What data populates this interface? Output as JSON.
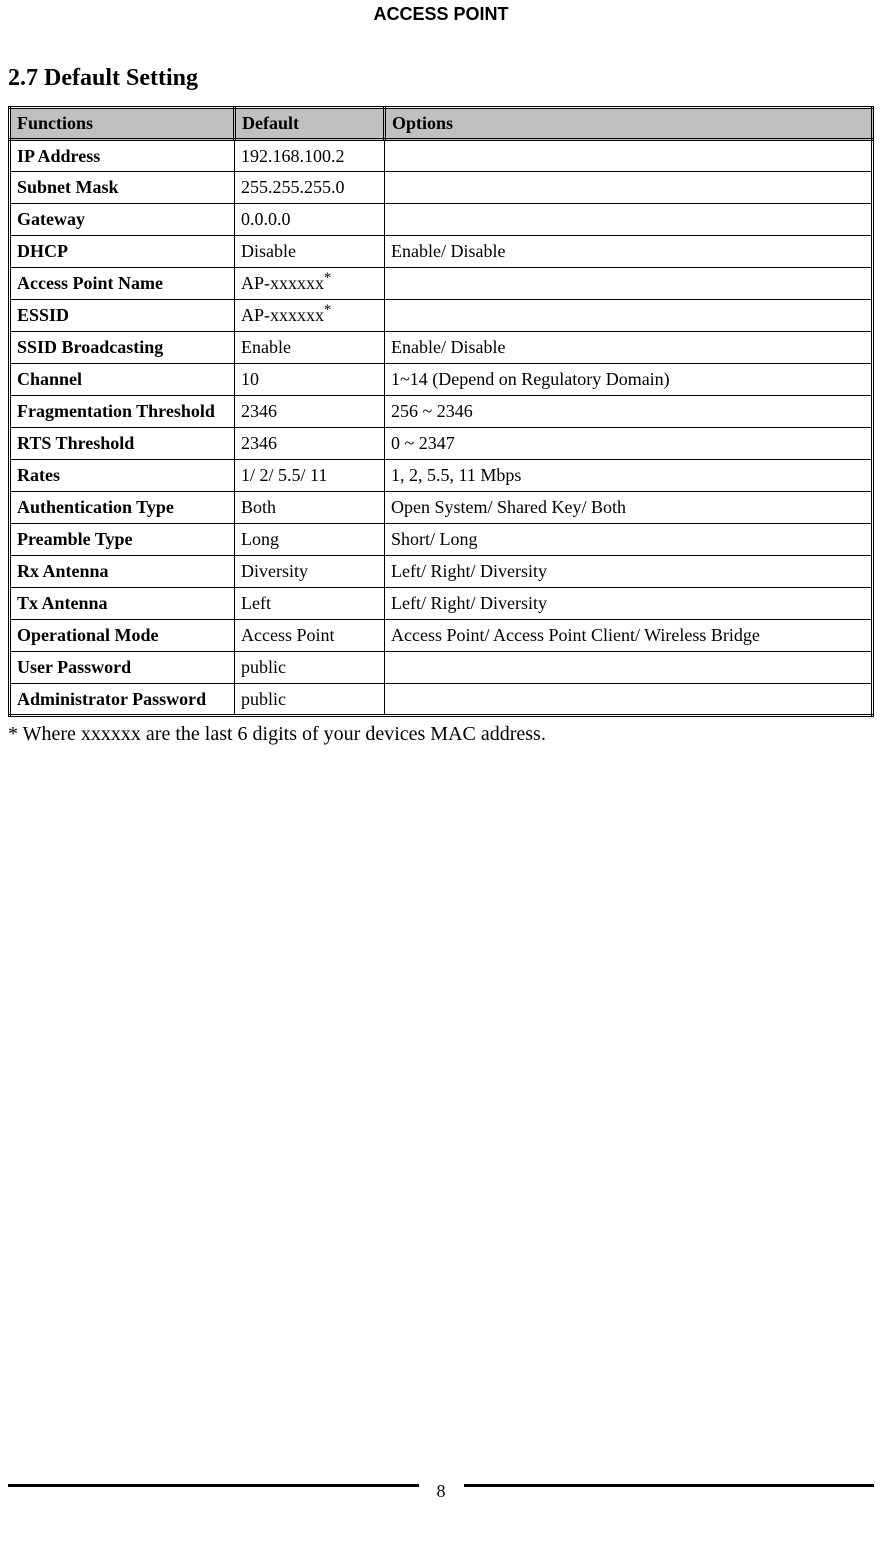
{
  "header": "ACCESS POINT",
  "section_heading": "2.7 Default Setting",
  "table": {
    "type": "table",
    "header_bg": "#c0c0c0",
    "border_color": "#000000",
    "columns": [
      "Functions",
      "Default",
      "Options"
    ],
    "rows": [
      {
        "fn": "IP Address",
        "def": "192.168.100.2",
        "opt": ""
      },
      {
        "fn": "Subnet Mask",
        "def": "255.255.255.0",
        "opt": ""
      },
      {
        "fn": "Gateway",
        "def": "0.0.0.0",
        "opt": ""
      },
      {
        "fn": "DHCP",
        "def": "Disable",
        "opt": "Enable/ Disable"
      },
      {
        "fn": "Access Point Name",
        "def": "AP-xxxxxx",
        "opt": "",
        "def_sup": "*"
      },
      {
        "fn": "ESSID",
        "def": "AP-xxxxxx",
        "opt": "",
        "def_sup": "*"
      },
      {
        "fn": "SSID Broadcasting",
        "def": "Enable",
        "opt": "Enable/ Disable"
      },
      {
        "fn": "Channel",
        "def": "10",
        "opt": "1~14 (Depend on Regulatory Domain)"
      },
      {
        "fn": "Fragmentation Threshold",
        "def": "2346",
        "opt": "256 ~ 2346"
      },
      {
        "fn": "RTS Threshold",
        "def": "2346",
        "opt": "0 ~ 2347"
      },
      {
        "fn": "Rates",
        "def": "1/ 2/ 5.5/ 11",
        "opt": "1, 2, 5.5, 11 Mbps"
      },
      {
        "fn": "Authentication Type",
        "def": "Both",
        "opt": "Open System/ Shared Key/ Both"
      },
      {
        "fn": "Preamble Type",
        "def": "Long",
        "opt": "Short/ Long"
      },
      {
        "fn": "Rx Antenna",
        "def": "Diversity",
        "opt": "Left/ Right/ Diversity"
      },
      {
        "fn": "Tx Antenna",
        "def": "Left",
        "opt": "Left/ Right/ Diversity"
      },
      {
        "fn": "Operational Mode",
        "def": "Access Point",
        "opt": "Access Point/ Access Point Client/ Wireless Bridge"
      },
      {
        "fn": "User Password",
        "def": "public",
        "opt": ""
      },
      {
        "fn": "Administrator Password",
        "def": "public",
        "opt": ""
      }
    ]
  },
  "footnote": "* Where xxxxxx are the last 6 digits of your devices MAC address.",
  "page_number": "8"
}
